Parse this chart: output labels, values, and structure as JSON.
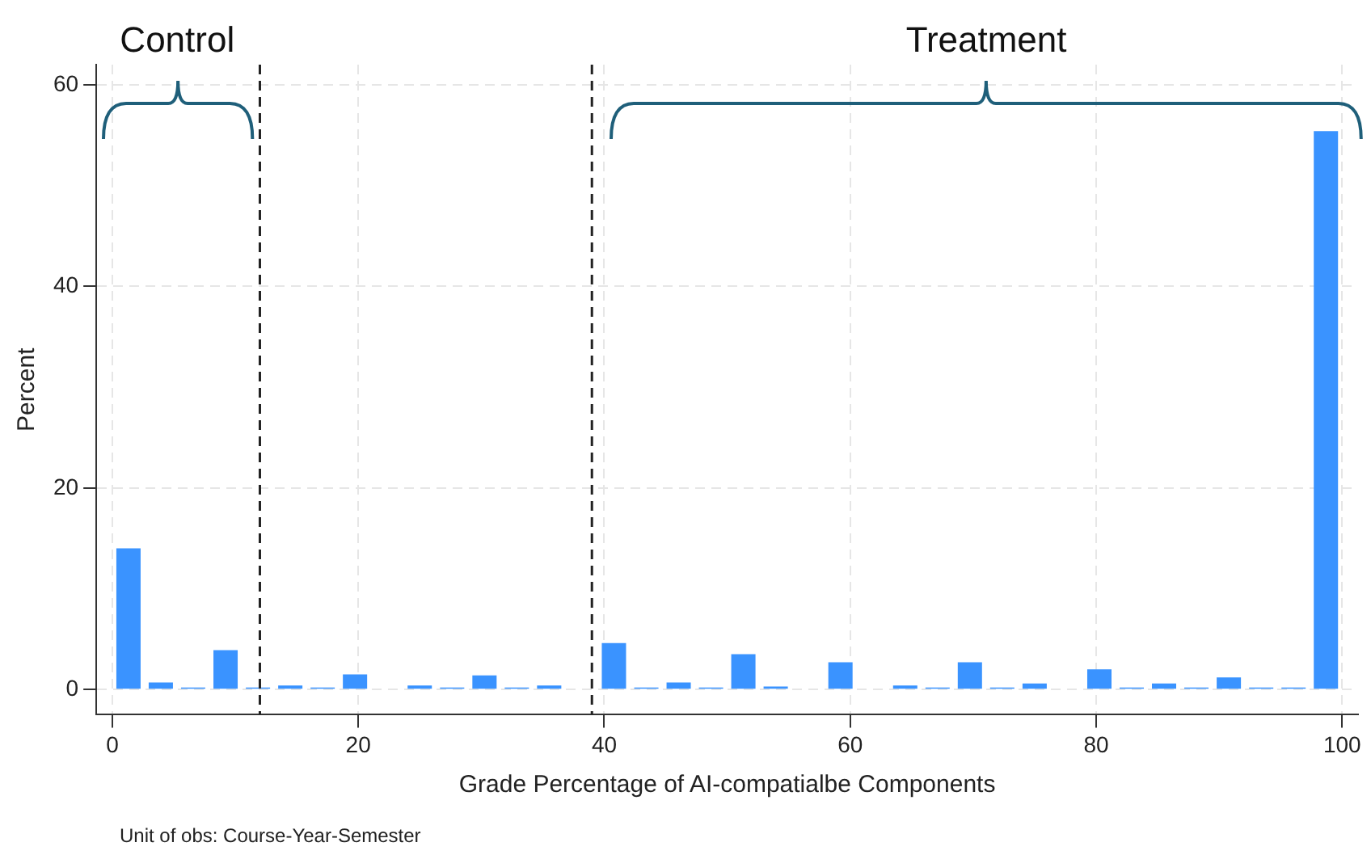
{
  "chart_data": {
    "type": "histogram",
    "xlabel": "Grade Percentage of AI-compatialbe Components",
    "ylabel": "Percent",
    "bins": [
      0,
      2.63,
      5.26,
      7.89,
      10.53,
      13.16,
      15.79,
      18.42,
      21.05,
      23.68,
      26.32,
      28.95,
      31.58,
      34.21,
      36.84,
      39.47,
      42.11,
      44.74,
      47.37,
      50,
      52.63,
      55.26,
      57.89,
      60.53,
      63.16,
      65.79,
      68.42,
      71.05,
      73.68,
      76.32,
      78.95,
      81.58,
      84.21,
      86.84,
      89.47,
      92.11,
      94.74,
      97.37,
      100
    ],
    "values": [
      14,
      0.7,
      0.2,
      3.9,
      0.2,
      0.4,
      0.2,
      1.5,
      0,
      0.4,
      0.2,
      1.4,
      0.2,
      0.4,
      0,
      4.6,
      0.2,
      0.7,
      0.2,
      3.5,
      0.3,
      0,
      2.7,
      0,
      0.4,
      0.2,
      2.7,
      0.2,
      0.6,
      0,
      2,
      0.2,
      0.6,
      0.2,
      1.2,
      0.2,
      0.2,
      55.4
    ],
    "color": "#3a93ff",
    "xlim": [
      -1.3,
      101.3
    ],
    "ylim": [
      -2.5,
      62
    ],
    "xticks": [
      0,
      20,
      40,
      60,
      80,
      100
    ],
    "yticks": [
      0,
      20,
      40,
      60
    ],
    "grid": true,
    "ref_lines": [
      {
        "axis": "x",
        "value": 12,
        "color": "#222222",
        "line_style": "dashed"
      },
      {
        "axis": "x",
        "value": 39,
        "color": "#222222",
        "line_style": "dashed"
      }
    ],
    "annotations": [
      "Control",
      "Treatment",
      "Unit of obs: Course-Year-Semester"
    ]
  }
}
